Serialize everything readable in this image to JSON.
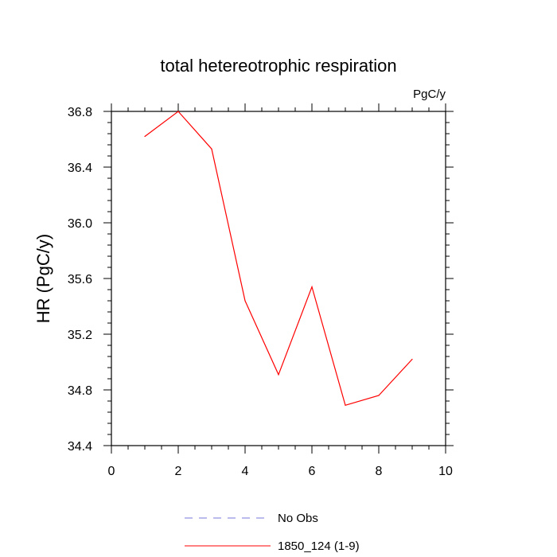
{
  "chart_data": {
    "type": "line",
    "title": "total hetereotrophic respiration",
    "units_label": "PgC/y",
    "xlabel": "",
    "ylabel": "HR  (PgC/y)",
    "xlim": [
      0,
      10
    ],
    "ylim": [
      34.4,
      36.8
    ],
    "x_ticks": [
      0,
      2,
      4,
      6,
      8,
      10
    ],
    "x_tick_labels": [
      "0",
      "2",
      "4",
      "6",
      "8",
      "10"
    ],
    "y_ticks": [
      34.4,
      34.8,
      35.2,
      35.6,
      36.0,
      36.4,
      36.8
    ],
    "y_tick_labels": [
      "34.4",
      "34.8",
      "35.2",
      "35.6",
      "36.0",
      "36.4",
      "36.8"
    ],
    "grid": false,
    "legend_position": "bottom-center",
    "series": [
      {
        "name": "1850_124 (1-9)",
        "color": "#ff0000",
        "style": "solid",
        "x": [
          1,
          2,
          3,
          4,
          5,
          6,
          7,
          8,
          9
        ],
        "y": [
          36.62,
          36.8,
          36.53,
          35.44,
          34.91,
          35.54,
          34.69,
          34.76,
          35.02
        ]
      }
    ],
    "legend": [
      {
        "label": "No Obs",
        "color": "#7777dd",
        "style": "dashed"
      },
      {
        "label": "1850_124 (1-9)",
        "color": "#ff0000",
        "style": "solid"
      }
    ]
  }
}
